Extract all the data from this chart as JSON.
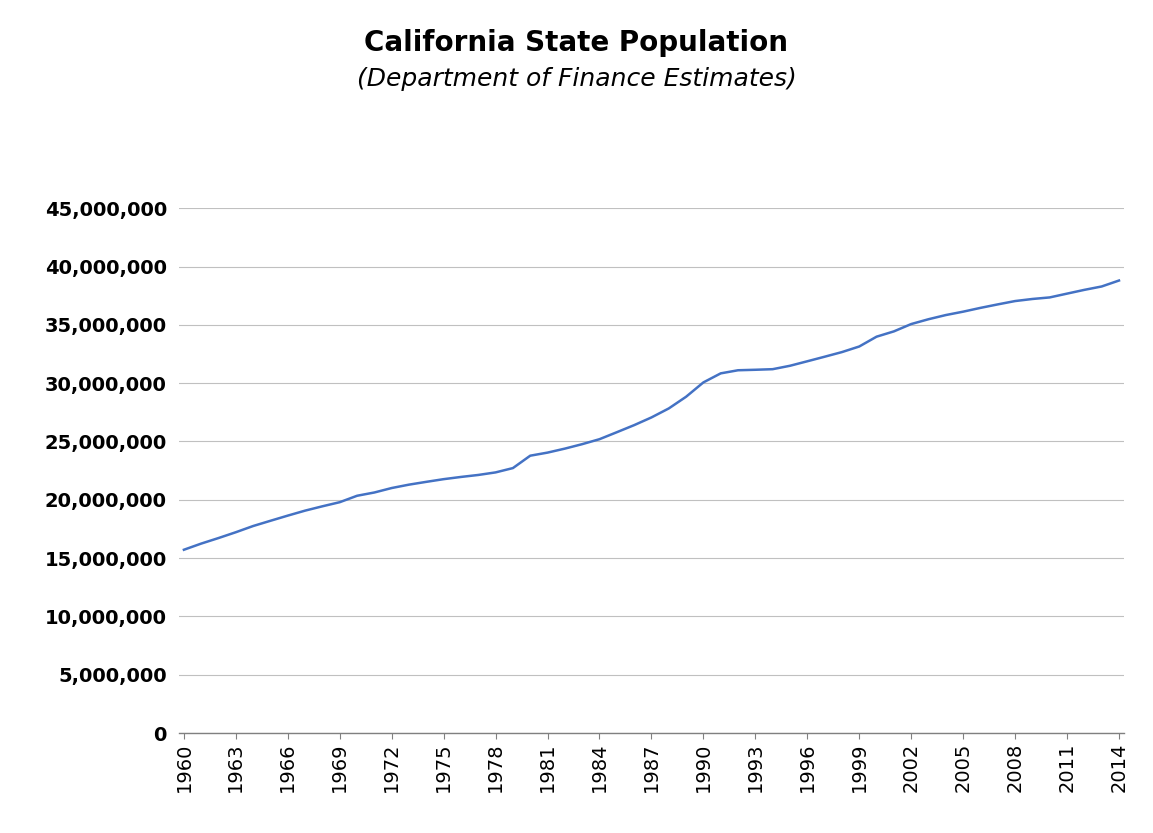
{
  "title_line1": "California State Population",
  "title_line2": "(Department of Finance Estimates)",
  "line_color": "#4472C4",
  "line_width": 1.8,
  "background_color": "#ffffff",
  "years": [
    1960,
    1961,
    1962,
    1963,
    1964,
    1965,
    1966,
    1967,
    1968,
    1969,
    1970,
    1971,
    1972,
    1973,
    1974,
    1975,
    1976,
    1977,
    1978,
    1979,
    1980,
    1981,
    1982,
    1983,
    1984,
    1985,
    1986,
    1987,
    1988,
    1989,
    1990,
    1991,
    1992,
    1993,
    1994,
    1995,
    1996,
    1997,
    1998,
    1999,
    2000,
    2001,
    2002,
    2003,
    2004,
    2005,
    2006,
    2007,
    2008,
    2009,
    2010,
    2011,
    2012,
    2013,
    2014
  ],
  "population": [
    15717204,
    16245700,
    16721300,
    17220700,
    17752700,
    18201700,
    18644700,
    19071700,
    19443700,
    19795300,
    20346000,
    20627000,
    21010000,
    21300000,
    21540000,
    21770000,
    21960000,
    22130000,
    22350000,
    22720000,
    23782000,
    24047000,
    24389000,
    24771000,
    25197000,
    25795000,
    26401000,
    27063000,
    27833000,
    28836000,
    30067000,
    30842000,
    31108000,
    31150000,
    31200000,
    31493000,
    31878000,
    32268000,
    32666000,
    33145000,
    33987000,
    34441000,
    35070000,
    35484000,
    35842000,
    36132000,
    36457000,
    36756000,
    37042000,
    37220000,
    37354000,
    37679000,
    38002000,
    38292000,
    38802000
  ],
  "yticks": [
    0,
    5000000,
    10000000,
    15000000,
    20000000,
    25000000,
    30000000,
    35000000,
    40000000,
    45000000
  ],
  "xticks": [
    1960,
    1963,
    1966,
    1969,
    1972,
    1975,
    1978,
    1981,
    1984,
    1987,
    1990,
    1993,
    1996,
    1999,
    2002,
    2005,
    2008,
    2011,
    2014
  ],
  "ylim": [
    0,
    45000000
  ],
  "xlim": [
    1960,
    2014
  ],
  "title1_fontsize": 20,
  "title2_fontsize": 18,
  "tick_fontsize": 14,
  "grid_color": "#c0c0c0",
  "spine_color": "#808080"
}
